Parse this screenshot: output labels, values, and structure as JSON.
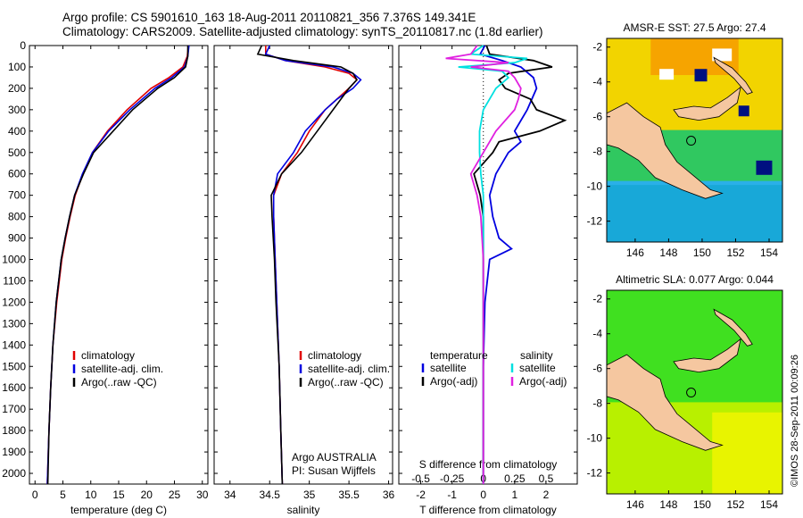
{
  "header": {
    "line1": "Argo profile: CS 5901610_163 18-Aug-2011 20110821_356 7.376S 149.341E",
    "line2": "Climatology: CARS2009. Satellite-adjusted climatology: synTS_20110817.nc (1.8d earlier)"
  },
  "colors": {
    "climatology": "#e00000",
    "satellite": "#0000e0",
    "argo": "#000000",
    "salinity_satellite": "#00e0e0",
    "salinity_argo": "#e020e0",
    "land": "#f5c7a0"
  },
  "chart_data": [
    {
      "type": "line",
      "id": "temperature",
      "xlabel": "temperature (deg C)",
      "xlim": [
        -1,
        31
      ],
      "xticks": [
        "0",
        "5",
        "10",
        "15",
        "20",
        "25",
        "30"
      ],
      "ylim": [
        2050,
        0
      ],
      "yticks": [
        "0",
        "100",
        "200",
        "300",
        "400",
        "500",
        "600",
        "700",
        "800",
        "900",
        "1000",
        "1100",
        "1200",
        "1300",
        "1400",
        "1500",
        "1600",
        "1700",
        "1800",
        "1900",
        "2000"
      ],
      "depth": [
        0,
        50,
        100,
        150,
        200,
        300,
        400,
        500,
        600,
        700,
        800,
        900,
        1000,
        1200,
        1400,
        1600,
        1800,
        2050
      ],
      "legend": [
        "climatology",
        "satellite-adj. clim.",
        "Argo(..raw -QC)"
      ],
      "series": [
        {
          "name": "climatology",
          "values": [
            27.5,
            27.3,
            26.5,
            24.0,
            20.8,
            16.5,
            13.0,
            10.3,
            8.6,
            7.2,
            6.3,
            5.5,
            4.8,
            3.9,
            3.2,
            2.8,
            2.5,
            2.2
          ]
        },
        {
          "name": "satellite-adj. clim.",
          "values": [
            27.6,
            27.4,
            26.8,
            24.5,
            21.5,
            17.0,
            13.2,
            10.3,
            8.5,
            7.1,
            6.2,
            5.4,
            4.7,
            3.8,
            3.2,
            2.8,
            2.5,
            2.2
          ]
        },
        {
          "name": "Argo(..raw -QC)",
          "values": [
            27.4,
            27.4,
            27.0,
            25.0,
            22.0,
            17.5,
            14.0,
            10.5,
            8.7,
            7.1,
            6.2,
            5.4,
            4.7,
            3.8,
            3.2,
            2.8,
            2.5,
            2.3
          ]
        }
      ]
    },
    {
      "type": "line",
      "id": "salinity",
      "xlabel": "salinity",
      "xlim": [
        33.8,
        36.05
      ],
      "xticks": [
        "34",
        "34.5",
        "35",
        "35.5",
        "36"
      ],
      "ylim": [
        2050,
        0
      ],
      "depth": [
        0,
        40,
        70,
        100,
        130,
        160,
        200,
        250,
        300,
        400,
        500,
        600,
        700,
        800,
        1000,
        1200,
        1500,
        1800,
        2050
      ],
      "legend": [
        "climatology",
        "satellite-adj. clim.",
        "Argo(..raw -QC)"
      ],
      "annotation": [
        "Argo AUSTRALIA",
        "PI: Susan Wijffels"
      ],
      "series": [
        {
          "name": "climatology",
          "values": [
            34.45,
            34.45,
            34.7,
            35.2,
            35.5,
            35.6,
            35.5,
            35.35,
            35.2,
            35.0,
            34.85,
            34.65,
            34.55,
            34.55,
            34.57,
            34.59,
            34.62,
            34.64,
            34.66
          ]
        },
        {
          "name": "satellite-adj. clim.",
          "values": [
            34.5,
            34.45,
            34.7,
            35.3,
            35.55,
            35.65,
            35.55,
            35.35,
            35.2,
            34.95,
            34.8,
            34.6,
            34.55,
            34.55,
            34.57,
            34.59,
            34.62,
            34.64,
            34.66
          ]
        },
        {
          "name": "Argo(..raw -QC)",
          "values": [
            34.4,
            34.35,
            34.8,
            35.4,
            35.55,
            35.6,
            35.5,
            35.4,
            35.3,
            35.1,
            34.9,
            34.65,
            34.52,
            34.53,
            34.56,
            34.58,
            34.62,
            34.64,
            34.66
          ]
        }
      ]
    },
    {
      "type": "line",
      "id": "difference",
      "xlabel": "T difference from climatology",
      "xlabel_top": "S difference from climatology",
      "xlim_T": [
        -2.7,
        3.0
      ],
      "xticks_T": [
        "-2",
        "-1",
        "0",
        "1",
        "2"
      ],
      "xticks_S": [
        "-0.5",
        "-0.25",
        "0",
        "0.25",
        "0.5"
      ],
      "ylim": [
        2050,
        0
      ],
      "legend_headers": [
        "temperature",
        "salinity"
      ],
      "legend": [
        "satellite",
        "Argo(-adj)",
        "satellite",
        "Argo(-adj)"
      ],
      "series": [
        {
          "name": "satellite",
          "quantity": "temperature",
          "depth": [
            0,
            40,
            70,
            100,
            150,
            200,
            300,
            400,
            450,
            500,
            600,
            700,
            800,
            900,
            950,
            1000,
            1200,
            1500,
            1800,
            2050
          ],
          "values": [
            0.05,
            -0.1,
            0.6,
            1.2,
            1.6,
            1.7,
            1.4,
            1.0,
            1.2,
            0.8,
            0.4,
            0.2,
            0.3,
            0.5,
            0.9,
            0.2,
            0.05,
            0.0,
            0.0,
            0.0
          ]
        },
        {
          "name": "Argo(-adj)",
          "quantity": "temperature",
          "depth": [
            0,
            40,
            70,
            100,
            130,
            160,
            200,
            250,
            300,
            350,
            400,
            450,
            500,
            600,
            700,
            800,
            1000,
            1500,
            2050
          ],
          "values": [
            0.1,
            0.2,
            1.6,
            2.2,
            0.8,
            0.5,
            0.7,
            1.5,
            1.7,
            2.6,
            1.8,
            0.5,
            0.3,
            -0.3,
            -0.1,
            0.0,
            0.0,
            0.0,
            0.0
          ]
        },
        {
          "name": "satellite",
          "quantity": "salinity",
          "depth": [
            0,
            40,
            60,
            80,
            100,
            120,
            150,
            200,
            300,
            400,
            500,
            600,
            700,
            800,
            1000,
            1500,
            2050
          ],
          "values": [
            0.0,
            -0.1,
            0.35,
            0.25,
            -0.2,
            0.15,
            0.2,
            0.1,
            0.0,
            -0.03,
            -0.03,
            -0.02,
            0.0,
            0.0,
            0.0,
            0.0,
            0.0
          ]
        },
        {
          "name": "Argo(-adj)",
          "quantity": "salinity",
          "depth": [
            0,
            40,
            60,
            80,
            100,
            120,
            150,
            200,
            250,
            300,
            400,
            500,
            600,
            700,
            800,
            1000,
            1500,
            2050
          ],
          "values": [
            -0.05,
            -0.1,
            -0.3,
            0.2,
            -0.1,
            0.2,
            0.25,
            0.3,
            0.28,
            0.25,
            0.1,
            0.0,
            -0.1,
            -0.05,
            -0.02,
            0.0,
            0.0,
            0.0
          ]
        }
      ]
    }
  ],
  "maps": [
    {
      "title": "AMSR-E SST: 27.5 Argo: 27.4",
      "xticks": [
        "146",
        "148",
        "150",
        "152",
        "154"
      ],
      "yticks": [
        "-2",
        "-4",
        "-6",
        "-8",
        "-10",
        "-12"
      ],
      "xlim": [
        144.3,
        154.8
      ],
      "ylim": [
        -13.2,
        -1.5
      ],
      "marker": [
        149.341,
        -7.376
      ]
    },
    {
      "title": "Altimetric SLA: 0.077 Argo: 0.044",
      "xticks": [
        "146",
        "148",
        "150",
        "152",
        "154"
      ],
      "yticks": [
        "-2",
        "-4",
        "-6",
        "-8",
        "-10",
        "-12"
      ],
      "xlim": [
        144.3,
        154.8
      ],
      "ylim": [
        -13.2,
        -1.5
      ],
      "marker": [
        149.341,
        -7.376
      ]
    }
  ],
  "stamp": "©IMOS 28-Sep-2011 00:09:26"
}
